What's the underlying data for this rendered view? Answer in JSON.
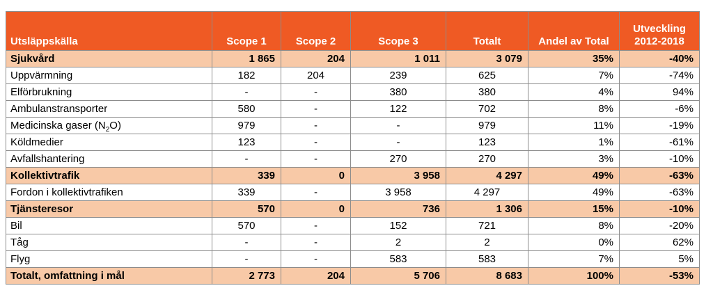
{
  "header": {
    "source": "Utsläppskälla",
    "scope1": "Scope 1",
    "scope2": "Scope 2",
    "scope3": "Scope 3",
    "total": "Totalt",
    "share": "Andel av Total",
    "trend_line1": "Utveckling",
    "trend_line2": "2012-2018"
  },
  "rows": [
    {
      "kind": "group",
      "label": "Sjukvård",
      "s1": "1 865",
      "s2": "204",
      "s3": "1 011",
      "tot": "3 079",
      "share": "35%",
      "trend": "-40%"
    },
    {
      "kind": "plain",
      "label": "Uppvärmning",
      "s1": "182",
      "s2": "204",
      "s3": "239",
      "tot": "625",
      "share": "7%",
      "trend": "-74%"
    },
    {
      "kind": "plain",
      "label": "Elförbrukning",
      "s1": "-",
      "s2": "-",
      "s3": "380",
      "tot": "380",
      "share": "4%",
      "trend": "94%"
    },
    {
      "kind": "plain",
      "label": "Ambulanstransporter",
      "s1": "580",
      "s2": "-",
      "s3": "122",
      "tot": "702",
      "share": "8%",
      "trend": "-6%"
    },
    {
      "kind": "plain",
      "label": "Medicinska gaser (N",
      "label_sub": "2",
      "label_after": "O)",
      "s1": "979",
      "s2": "-",
      "s3": "-",
      "tot": "979",
      "share": "11%",
      "trend": "-19%"
    },
    {
      "kind": "plain",
      "label": "Köldmedier",
      "s1": "123",
      "s2": "-",
      "s3": "-",
      "tot": "123",
      "share": "1%",
      "trend": "-61%"
    },
    {
      "kind": "plain",
      "label": "Avfallshantering",
      "s1": "-",
      "s2": "-",
      "s3": "270",
      "tot": "270",
      "share": "3%",
      "trend": "-10%"
    },
    {
      "kind": "group",
      "label": "Kollektivtrafik",
      "s1": "339",
      "s2": "0",
      "s3": "3 958",
      "tot": "4 297",
      "share": "49%",
      "trend": "-63%"
    },
    {
      "kind": "plain",
      "label": "Fordon i kollektivtrafiken",
      "s1": "339",
      "s2": "-",
      "s3": "3 958",
      "tot": "4 297",
      "share": "49%",
      "trend": "-63%"
    },
    {
      "kind": "group",
      "label": "Tjänsteresor",
      "s1": "570",
      "s2": "0",
      "s3": "736",
      "tot": "1 306",
      "share": "15%",
      "trend": "-10%"
    },
    {
      "kind": "plain",
      "label": "Bil",
      "s1": "570",
      "s2": "-",
      "s3": "152",
      "tot": "721",
      "share": "8%",
      "trend": "-20%"
    },
    {
      "kind": "plain",
      "label": "Tåg",
      "s1": "-",
      "s2": "-",
      "s3": "2",
      "tot": "2",
      "share": "0%",
      "trend": "62%"
    },
    {
      "kind": "plain",
      "label": "Flyg",
      "s1": "-",
      "s2": "-",
      "s3": "583",
      "tot": "583",
      "share": "7%",
      "trend": "5%"
    },
    {
      "kind": "total",
      "label": "Totalt, omfattning i mål",
      "s1": "2 773",
      "s2": "204",
      "s3": "5 706",
      "tot": "8 683",
      "share": "100%",
      "trend": "-53%"
    }
  ],
  "colors": {
    "header_bg": "#ef5a24",
    "group_bg": "#f8c9a7",
    "grid": "#8c8c8c"
  }
}
